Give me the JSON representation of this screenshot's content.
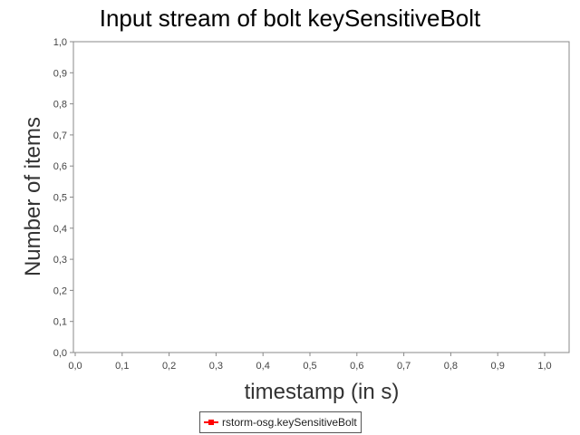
{
  "chart_data": {
    "type": "line",
    "title": "Input stream of bolt keySensitiveBolt",
    "xlabel": "timestamp (in s)",
    "ylabel": "Number of items",
    "xlim": [
      0.0,
      1.0
    ],
    "ylim": [
      0.0,
      1.0
    ],
    "xticks": [
      "0,0",
      "0,1",
      "0,2",
      "0,3",
      "0,4",
      "0,5",
      "0,6",
      "0,7",
      "0,8",
      "0,9",
      "1,0"
    ],
    "yticks": [
      "0,0",
      "0,1",
      "0,2",
      "0,3",
      "0,4",
      "0,5",
      "0,6",
      "0,7",
      "0,8",
      "0,9",
      "1,0"
    ],
    "grid": false,
    "legend_position": "bottom",
    "series": [
      {
        "name": "rstorm-osg.keySensitiveBolt",
        "color": "#ff0000",
        "x": [],
        "y": []
      }
    ]
  }
}
